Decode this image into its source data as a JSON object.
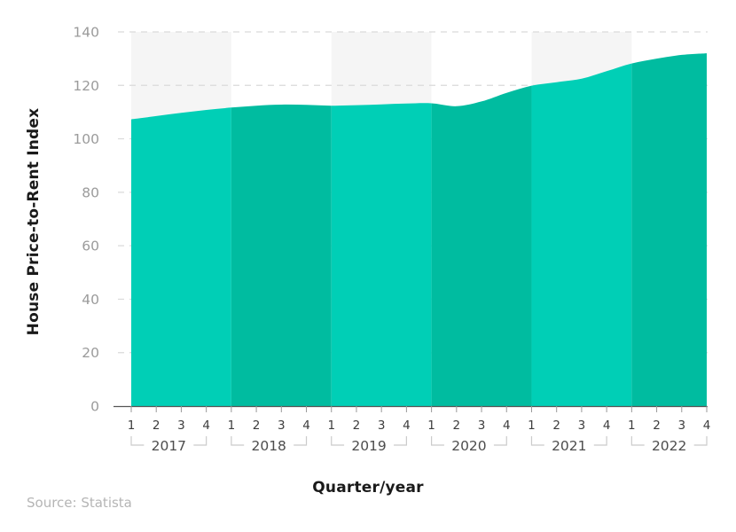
{
  "source": "Source: Statista",
  "chart_data": {
    "type": "area",
    "title": "",
    "xlabel": "Quarter/year",
    "ylabel": "House Price-to-Rent Index",
    "ylim": [
      0,
      140
    ],
    "y_ticks": [
      0,
      20,
      40,
      60,
      80,
      100,
      120,
      140
    ],
    "grid": "dashed-horizontal",
    "legend": "none",
    "years": [
      "2017",
      "2018",
      "2019",
      "2020",
      "2021",
      "2022"
    ],
    "quarter_labels": [
      "1",
      "2",
      "3",
      "4"
    ],
    "series": [
      {
        "name": "House Price-to-Rent Index",
        "values": [
          107.3,
          108.5,
          109.7,
          110.8,
          111.7,
          112.4,
          112.8,
          112.7,
          112.4,
          112.6,
          112.9,
          113.2,
          113.3,
          112.2,
          114.0,
          117.2,
          119.9,
          121.2,
          122.5,
          125.3,
          128.2,
          130.0,
          131.4,
          132.0
        ]
      }
    ],
    "colors": {
      "area_odd_year": "#00CFB6",
      "area_even_year": "#00BCA0",
      "band_odd_year": "#F5F5F5",
      "band_even_year": "#FFFFFF",
      "gridline": "#DADADA",
      "axis_line": "#555555",
      "tick": "#999999",
      "y_label": "#9B9B9B",
      "quarter_label": "#3D3D3D",
      "year_label": "#4D4D4D",
      "bracket": "#CBCBCB",
      "title_text": "#1A1A1A",
      "source_text": "#B5B5B5"
    }
  }
}
